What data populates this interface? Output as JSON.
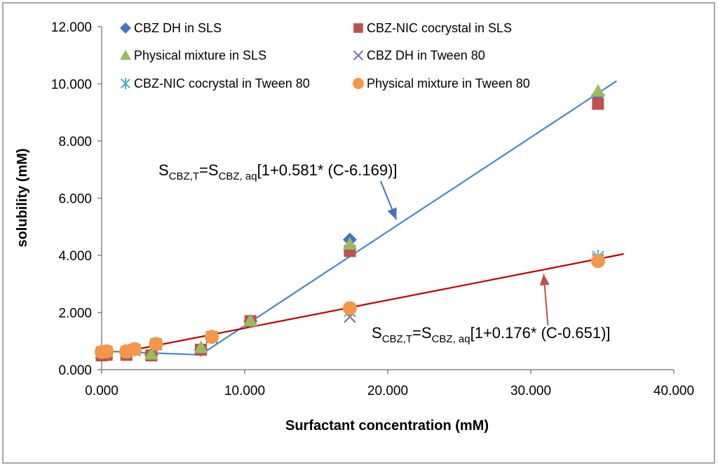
{
  "chart_data": {
    "type": "scatter",
    "xlabel": "Surfactant concentration (mM)",
    "ylabel": "solubility (mM)",
    "xlim": [
      0,
      40
    ],
    "ylim": [
      0,
      12
    ],
    "x_ticks": [
      0,
      10,
      20,
      30,
      40
    ],
    "y_ticks": [
      0,
      2,
      4,
      6,
      8,
      10,
      12
    ],
    "x_tick_labels": [
      "0.000",
      "10.000",
      "20.000",
      "30.000",
      "40.000"
    ],
    "y_tick_labels": [
      "0.000",
      "2.000",
      "4.000",
      "6.000",
      "8.000",
      "10.000",
      "12.000"
    ],
    "grid": false,
    "legend_position": "top",
    "series": [
      {
        "name": "CBZ DH in SLS",
        "marker": "diamond",
        "color": "#4472C4",
        "points": [
          [
            0,
            0.55
          ],
          [
            0.35,
            0.6
          ],
          [
            1.73,
            0.55
          ],
          [
            3.47,
            0.52
          ],
          [
            6.94,
            0.7
          ],
          [
            10.4,
            1.7
          ],
          [
            17.35,
            4.55
          ],
          [
            34.7,
            9.6
          ]
        ]
      },
      {
        "name": "CBZ-NIC cocrystal in SLS",
        "marker": "square",
        "color": "#C0504D",
        "points": [
          [
            0,
            0.5
          ],
          [
            0.35,
            0.52
          ],
          [
            1.73,
            0.52
          ],
          [
            3.47,
            0.5
          ],
          [
            6.94,
            0.7
          ],
          [
            10.4,
            1.7
          ],
          [
            17.35,
            4.15
          ],
          [
            34.7,
            9.3
          ]
        ]
      },
      {
        "name": "Physical mixture in SLS",
        "marker": "triangle",
        "color": "#9BBB59",
        "points": [
          [
            0,
            0.6
          ],
          [
            0.35,
            0.62
          ],
          [
            1.73,
            0.6
          ],
          [
            3.47,
            0.55
          ],
          [
            6.94,
            0.78
          ],
          [
            10.4,
            1.72
          ],
          [
            17.35,
            4.4
          ],
          [
            34.7,
            9.75
          ]
        ]
      },
      {
        "name": "CBZ DH in Tween 80",
        "marker": "x",
        "color": "#8064A2",
        "points": [
          [
            0,
            0.6
          ],
          [
            0.35,
            0.62
          ],
          [
            1.73,
            0.62
          ],
          [
            2.3,
            0.68
          ],
          [
            3.8,
            0.88
          ],
          [
            7.7,
            1.12
          ],
          [
            17.35,
            1.85
          ],
          [
            34.7,
            3.85
          ]
        ]
      },
      {
        "name": "CBZ-NIC cocrystal in Tween 80",
        "marker": "asterisk",
        "color": "#4BACC6",
        "points": [
          [
            0,
            0.62
          ],
          [
            0.35,
            0.63
          ],
          [
            1.73,
            0.63
          ],
          [
            2.3,
            0.7
          ],
          [
            3.8,
            0.9
          ],
          [
            7.7,
            1.15
          ],
          [
            17.35,
            2.05
          ],
          [
            34.7,
            3.95
          ]
        ]
      },
      {
        "name": "Physical mixture in Tween 80",
        "marker": "circle",
        "color": "#F79646",
        "points": [
          [
            0,
            0.62
          ],
          [
            0.35,
            0.64
          ],
          [
            1.73,
            0.64
          ],
          [
            2.3,
            0.72
          ],
          [
            3.8,
            0.9
          ],
          [
            7.7,
            1.15
          ],
          [
            17.35,
            2.15
          ],
          [
            34.7,
            3.8
          ]
        ]
      }
    ],
    "fit_lines": [
      {
        "name": "SLS fit",
        "color": "#4A86C8",
        "points": [
          [
            0,
            0.65
          ],
          [
            6.9,
            0.52
          ],
          [
            36.0,
            10.1
          ]
        ]
      },
      {
        "name": "Tween 80 fit",
        "color": "#C00000",
        "points": [
          [
            1.8,
            0.65
          ],
          [
            36.5,
            4.05
          ]
        ]
      }
    ],
    "annotations": [
      {
        "id": "sls",
        "base": "S",
        "sub1": "CBZ,T",
        "mid": "=S",
        "sub2": "CBZ, aq",
        "tail": "[1+0.581* (C-6.169)]",
        "arrow_color": "#4472C4",
        "arrow_from": [
          19.5,
          6.6
        ],
        "arrow_to": [
          20.6,
          5.25
        ]
      },
      {
        "id": "tween",
        "base": "S",
        "sub1": "CBZ,T",
        "mid": "=S",
        "sub2": "CBZ, aq",
        "tail": "[1+0.176* (C-0.651)]",
        "arrow_color": "#C0504D",
        "arrow_from": [
          31.2,
          1.55
        ],
        "arrow_to": [
          30.9,
          3.35
        ]
      }
    ]
  }
}
